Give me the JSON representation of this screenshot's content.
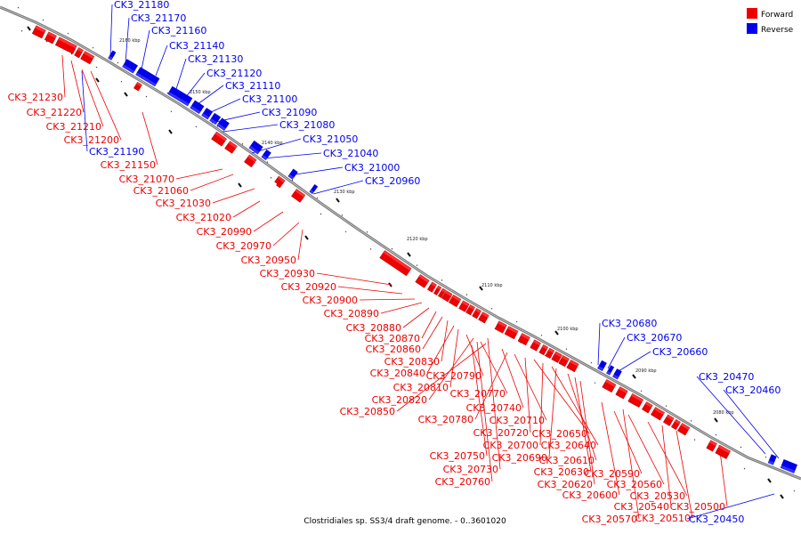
{
  "caption": "Clostridiales sp. SS3/4 draft genome. - 0..3601020",
  "colors": {
    "forward": "#ee0000",
    "reverse": "#0000ee",
    "backbone": "#777777"
  },
  "legend": [
    {
      "name": "legend-forward",
      "label": "Forward",
      "color": "#ee0000"
    },
    {
      "name": "legend-reverse",
      "label": "Reverse",
      "color": "#0000ee"
    }
  ],
  "kbp_marks": [
    "2160 kbp",
    "2150 kbp",
    "2140 kbp",
    "2130 kbp",
    "2120 kbp",
    "2110 kbp",
    "2100 kbp",
    "2090 kbp",
    "2080 kbp"
  ],
  "genes_reverse": [
    "CK3_21180",
    "CK3_21170",
    "CK3_21160",
    "CK3_21140",
    "CK3_21130",
    "CK3_21120",
    "CK3_21110",
    "CK3_21100",
    "CK3_21090",
    "CK3_21080",
    "CK3_21050",
    "CK3_21040",
    "CK3_21000",
    "CK3_20960",
    "CK3_21190",
    "CK3_20680",
    "CK3_20670",
    "CK3_20660",
    "CK3_20470",
    "CK3_20460",
    "CK3_20450"
  ],
  "genes_forward": [
    "CK3_21230",
    "CK3_21220",
    "CK3_21210",
    "CK3_21200",
    "CK3_21150",
    "CK3_21070",
    "CK3_21060",
    "CK3_21030",
    "CK3_21020",
    "CK3_20990",
    "CK3_20970",
    "CK3_20950",
    "CK3_20930",
    "CK3_20920",
    "CK3_20900",
    "CK3_20890",
    "CK3_20880",
    "CK3_20870",
    "CK3_20860",
    "CK3_20830",
    "CK3_20840",
    "CK3_20810",
    "CK3_20790",
    "CK3_20820",
    "CK3_20770",
    "CK3_20850",
    "CK3_20740",
    "CK3_20780",
    "CK3_20710",
    "CK3_20720",
    "CK3_20650",
    "CK3_20700",
    "CK3_20640",
    "CK3_20750",
    "CK3_20690",
    "CK3_20730",
    "CK3_20610",
    "CK3_20630",
    "CK3_20590",
    "CK3_20760",
    "CK3_20620",
    "CK3_20560",
    "CK3_20600",
    "CK3_20530",
    "CK3_20540",
    "CK3_20500",
    "CK3_20570",
    "CK3_20510"
  ]
}
